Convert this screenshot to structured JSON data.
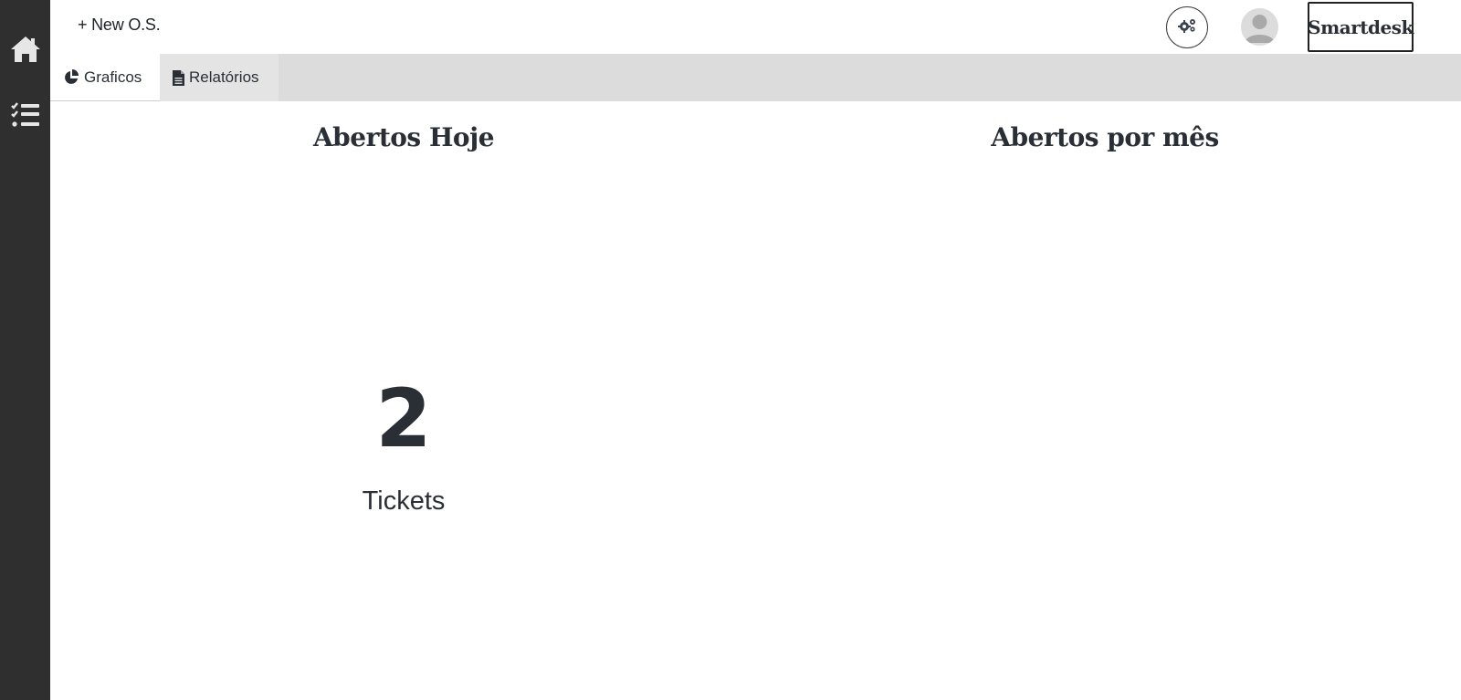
{
  "topbar": {
    "new_os_label": "+ New O.S.",
    "brand_label": "Smartdesk"
  },
  "sidebar": {
    "items": [
      {
        "icon": "home-icon"
      },
      {
        "icon": "task-list-icon"
      }
    ]
  },
  "tabs": [
    {
      "label": "Graficos",
      "icon": "pie-chart-icon",
      "active": true
    },
    {
      "label": "Relatórios",
      "icon": "file-icon",
      "active": false
    }
  ],
  "panels": {
    "today": {
      "title": "Abertos Hoje",
      "count": "2",
      "unit": "Tickets"
    },
    "monthly": {
      "title": "Abertos por mês"
    }
  },
  "colors": {
    "sidebar": "#2f2f2f",
    "tabbar": "#dcdcdc",
    "text": "#2a2f36"
  }
}
